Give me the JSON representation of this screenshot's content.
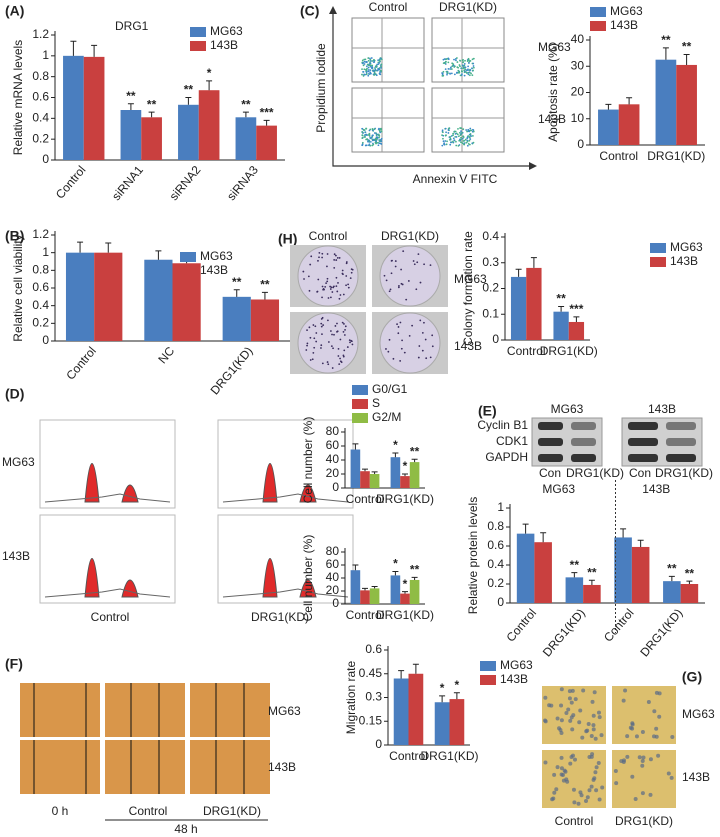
{
  "chart_data": [
    {
      "type": "bar",
      "title": "DRG1",
      "y_label": "Relative mRNA levels",
      "categories": [
        "Control",
        "siRNA1",
        "siRNA2",
        "siRNA3"
      ],
      "series": [
        {
          "name": "MG63",
          "color": "#4a7ebf",
          "values": [
            1.0,
            0.48,
            0.53,
            0.41
          ],
          "errors": [
            0.14,
            0.06,
            0.07,
            0.05
          ],
          "significance": [
            null,
            "**",
            "**",
            "**"
          ]
        },
        {
          "name": "143B",
          "color": "#c9403f",
          "values": [
            0.99,
            0.41,
            0.67,
            0.33
          ],
          "errors": [
            0.11,
            0.05,
            0.09,
            0.05
          ],
          "significance": [
            null,
            "**",
            "*",
            "***"
          ]
        }
      ],
      "ylim": [
        0,
        1.2
      ],
      "yticks": [
        0,
        0.2,
        0.4,
        0.6,
        0.8,
        1,
        1.2
      ]
    },
    {
      "type": "bar",
      "y_label": "Apoptosis rate (%)",
      "categories": [
        "Control",
        "DRG1(KD)"
      ],
      "series": [
        {
          "name": "MG63",
          "color": "#4a7ebf",
          "values": [
            13.5,
            32.5
          ],
          "errors": [
            2,
            4.5
          ],
          "significance": [
            null,
            "**"
          ]
        },
        {
          "name": "143B",
          "color": "#c9403f",
          "values": [
            15.5,
            30.5
          ],
          "errors": [
            2.5,
            4
          ],
          "significance": [
            null,
            "**"
          ]
        }
      ],
      "ylim": [
        0,
        40
      ],
      "yticks": [
        0,
        10,
        20,
        30,
        40
      ]
    },
    {
      "type": "bar",
      "y_label": "Relative cell viability",
      "categories": [
        "Control",
        "NC",
        "DRG1(KD)"
      ],
      "series": [
        {
          "name": "MG63",
          "color": "#4a7ebf",
          "values": [
            1.0,
            0.92,
            0.5
          ],
          "errors": [
            0.12,
            0.1,
            0.08
          ],
          "significance": [
            null,
            null,
            "**"
          ]
        },
        {
          "name": "143B",
          "color": "#c9403f",
          "values": [
            1.0,
            0.88,
            0.47
          ],
          "errors": [
            0.11,
            0.1,
            0.08
          ],
          "significance": [
            null,
            null,
            "**"
          ]
        }
      ],
      "ylim": [
        0,
        1.2
      ],
      "yticks": [
        0,
        0.2,
        0.4,
        0.6,
        0.8,
        1,
        1.2
      ]
    },
    {
      "type": "bar",
      "y_label": "Colony formation rate",
      "categories": [
        "Control",
        "DRG1(KD)"
      ],
      "series": [
        {
          "name": "MG63",
          "color": "#4a7ebf",
          "values": [
            0.245,
            0.11
          ],
          "errors": [
            0.03,
            0.02
          ],
          "significance": [
            null,
            "**"
          ]
        },
        {
          "name": "143B",
          "color": "#c9403f",
          "values": [
            0.28,
            0.07
          ],
          "errors": [
            0.04,
            0.02
          ],
          "significance": [
            null,
            "***"
          ]
        }
      ],
      "ylim": [
        0,
        0.4
      ],
      "yticks": [
        0,
        0.1,
        0.2,
        0.3,
        0.4
      ]
    },
    {
      "type": "bar",
      "y_label": "Cell number (%)",
      "categories": [
        "Control",
        "DRG1(KD)"
      ],
      "series": [
        {
          "name": "G0/G1",
          "color": "#4a7ebf",
          "values": [
            55,
            44
          ],
          "errors": [
            8,
            6
          ],
          "significance": [
            null,
            "*"
          ]
        },
        {
          "name": "S",
          "color": "#c9403f",
          "values": [
            24,
            17
          ],
          "errors": [
            3,
            3
          ],
          "significance": [
            null,
            "*"
          ]
        },
        {
          "name": "G2/M",
          "color": "#8fbc45",
          "values": [
            20,
            37
          ],
          "errors": [
            3,
            4
          ],
          "significance": [
            null,
            "**"
          ]
        }
      ],
      "ylim": [
        0,
        80
      ],
      "yticks": [
        0,
        20,
        40,
        60,
        80
      ]
    },
    {
      "type": "bar",
      "y_label": "Cell number (%)",
      "categories": [
        "Control",
        "DRG1(KD)"
      ],
      "series": [
        {
          "color": "#4a7ebf",
          "values": [
            52,
            44
          ],
          "errors": [
            8,
            6
          ],
          "significance": [
            null,
            "*"
          ]
        },
        {
          "color": "#c9403f",
          "values": [
            21,
            16
          ],
          "errors": [
            3,
            3
          ],
          "significance": [
            null,
            "*"
          ]
        },
        {
          "color": "#8fbc45",
          "values": [
            24,
            37
          ],
          "errors": [
            3,
            4
          ],
          "significance": [
            null,
            "**"
          ]
        }
      ],
      "ylim": [
        0,
        80
      ],
      "yticks": [
        0,
        20,
        40,
        60,
        80
      ]
    },
    {
      "type": "bar",
      "y_label": "Relative protein levels",
      "groups": [
        "MG63",
        "143B"
      ],
      "categories": [
        "Control",
        "DRG1(KD)",
        "Control",
        "DRG1(KD)"
      ],
      "series": [
        {
          "color": "#4a7ebf",
          "values": [
            0.73,
            0.27,
            0.69,
            0.23
          ],
          "errors": [
            0.1,
            0.05,
            0.09,
            0.05
          ],
          "significance": [
            null,
            "**",
            null,
            "**"
          ]
        },
        {
          "color": "#c9403f",
          "values": [
            0.64,
            0.19,
            0.59,
            0.2
          ],
          "errors": [
            0.1,
            0.05,
            0.07,
            0.03
          ],
          "significance": [
            null,
            "**",
            null,
            "**"
          ]
        }
      ],
      "ylim": [
        0,
        1
      ],
      "yticks": [
        0,
        0.2,
        0.4,
        0.6,
        0.8,
        1
      ]
    },
    {
      "type": "bar",
      "y_label": "Migration rate",
      "categories": [
        "Control",
        "DRG1(KD)"
      ],
      "series": [
        {
          "name": "MG63",
          "color": "#4a7ebf",
          "values": [
            0.42,
            0.27
          ],
          "errors": [
            0.05,
            0.04
          ],
          "significance": [
            null,
            "*"
          ]
        },
        {
          "name": "143B",
          "color": "#c9403f",
          "values": [
            0.45,
            0.29
          ],
          "errors": [
            0.06,
            0.04
          ],
          "significance": [
            null,
            "*"
          ]
        }
      ],
      "ylim": [
        0,
        0.6
      ],
      "yticks": [
        0,
        0.15,
        0.3,
        0.45,
        0.6
      ]
    }
  ],
  "figure": {
    "panel_labels": [
      "(A)",
      "(B)",
      "(C)",
      "(D)",
      "(E)",
      "(F)",
      "(G)",
      "(H)"
    ],
    "C": {
      "columns": [
        "Control",
        "DRG1(KD)"
      ],
      "rows": [
        "MG63",
        "143B"
      ],
      "y_axis": "Propidium iodide",
      "x_axis": "Annexin V FITC"
    },
    "H": {
      "columns": [
        "Control",
        "DRG1(KD)"
      ],
      "rows": [
        "MG63",
        "143B"
      ]
    },
    "D": {
      "columns": [
        "Control",
        "DRG1(KD)"
      ],
      "rows": [
        "MG63",
        "143B"
      ]
    },
    "E": {
      "groups": [
        "MG63",
        "143B"
      ],
      "proteins": [
        "Cyclin B1",
        "CDK1",
        "GAPDH"
      ],
      "lanes": [
        "Con",
        "DRG1(KD)",
        "Con",
        "DRG1(KD)"
      ]
    },
    "F": {
      "rows": [
        "MG63",
        "143B"
      ],
      "columns": [
        "0 h",
        "Control",
        "DRG1(KD)"
      ],
      "time": "48 h"
    },
    "G": {
      "rows": [
        "MG63",
        "143B"
      ],
      "columns": [
        "Control",
        "DRG1(KD)"
      ]
    }
  }
}
